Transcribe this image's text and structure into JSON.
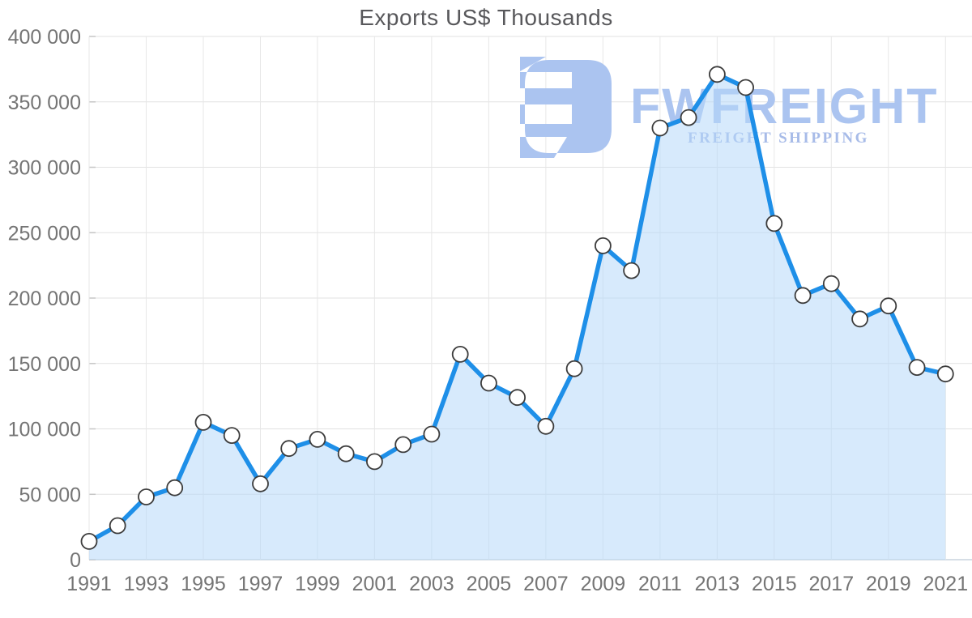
{
  "title": "Exports US$ Thousands",
  "watermark": {
    "brand": "FWFREIGHT",
    "tagline": "FREIGHT SHIPPING",
    "icon": "fwfreight-logo-mark",
    "color": "#abc4f0",
    "tagline_color": "#a7bbe8"
  },
  "chart_data": {
    "type": "area",
    "title": "Exports US$ Thousands",
    "xlabel": "",
    "ylabel": "US$ Thousands",
    "series_name": "Exports",
    "x": [
      1991,
      1992,
      1993,
      1994,
      1995,
      1996,
      1997,
      1998,
      1999,
      2000,
      2001,
      2002,
      2003,
      2004,
      2005,
      2006,
      2007,
      2008,
      2009,
      2010,
      2011,
      2012,
      2013,
      2014,
      2015,
      2016,
      2017,
      2018,
      2019,
      2020,
      2021
    ],
    "values": [
      14000,
      26000,
      48000,
      55000,
      105000,
      95000,
      58000,
      85000,
      92000,
      81000,
      75000,
      88000,
      96000,
      157000,
      135000,
      124000,
      102000,
      146000,
      240000,
      221000,
      330000,
      338000,
      371000,
      361000,
      257000,
      202000,
      211000,
      184000,
      194000,
      147000,
      142000
    ],
    "ylim": [
      0,
      400000
    ],
    "ytick_values": [
      0,
      50000,
      100000,
      150000,
      200000,
      250000,
      300000,
      350000,
      400000
    ],
    "ytick_labels": [
      "0",
      "50 000",
      "100 000",
      "150 000",
      "200 000",
      "250 000",
      "300 000",
      "350 000",
      "400 000"
    ],
    "xtick_labels": [
      "1991",
      "1993",
      "1995",
      "1997",
      "1999",
      "2001",
      "2003",
      "2005",
      "2007",
      "2009",
      "2011",
      "2013",
      "2015",
      "2017",
      "2019",
      "2021"
    ],
    "grid": true,
    "legend": "none",
    "marker": "circle-white",
    "colors": {
      "line": "#1e8fe8",
      "fill": "rgba(183,216,250,0.55)",
      "marker_fill": "#ffffff",
      "marker_stroke": "#3c3c3c",
      "grid": "#e2e2e2",
      "grid_v": "#e7e7e7",
      "axis_line": "#c9d4de",
      "tick_mark": "#c6c6c6",
      "axis_text": "#757575",
      "title_text": "#58585b"
    }
  }
}
